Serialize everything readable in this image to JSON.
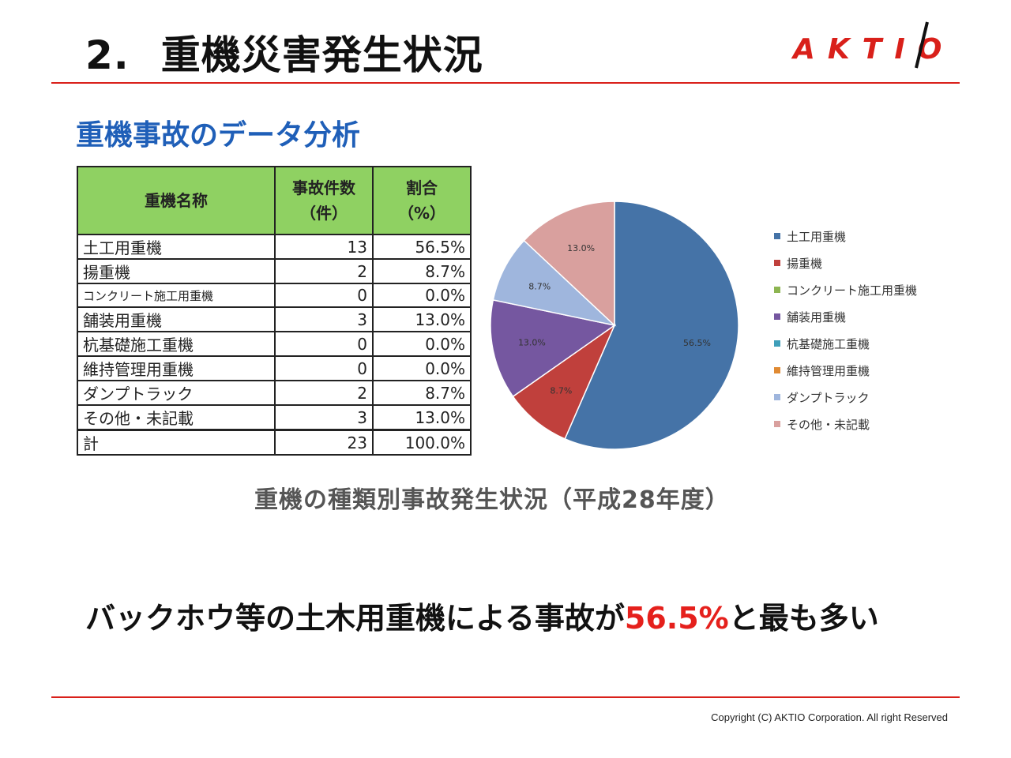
{
  "slide": {
    "number": "2.",
    "title": "重機災害発生状況",
    "logo_text": "AKTIO",
    "section_heading": "重機事故のデータ分析",
    "caption": "重機の種類別事故発生状況（平成28年度）",
    "conclusion_prefix": "バックホウ等の土木用重機による事故が",
    "conclusion_highlight": "56.5%",
    "conclusion_suffix": "と最も多い",
    "copyright": "Copyright (C)  AKTIO Corporation. All right Reserved"
  },
  "table": {
    "headers": {
      "name": "重機名称",
      "count_line1": "事故件数",
      "count_line2": "（件）",
      "ratio_line1": "割合",
      "ratio_line2": "（%）"
    },
    "rows": [
      {
        "name": "土工用重機",
        "count": "13",
        "ratio": "56.5%"
      },
      {
        "name": "揚重機",
        "count": "2",
        "ratio": "8.7%"
      },
      {
        "name": "コンクリート施工用重機",
        "count": "0",
        "ratio": "0.0%"
      },
      {
        "name": "舗装用重機",
        "count": "3",
        "ratio": "13.0%"
      },
      {
        "name": "杭基礎施工重機",
        "count": "0",
        "ratio": "0.0%"
      },
      {
        "name": "維持管理用重機",
        "count": "0",
        "ratio": "0.0%"
      },
      {
        "name": "ダンプトラック",
        "count": "2",
        "ratio": "8.7%"
      },
      {
        "name": "その他・未記載",
        "count": "3",
        "ratio": "13.0%"
      }
    ],
    "total": {
      "name": "計",
      "count": "23",
      "ratio": "100.0%"
    }
  },
  "chart_data": {
    "type": "pie",
    "categories": [
      "土工用重機",
      "揚重機",
      "コンクリート施工用重機",
      "舗装用重機",
      "杭基礎施工重機",
      "維持管理用重機",
      "ダンプトラック",
      "その他・未記載"
    ],
    "values": [
      56.5,
      8.7,
      0.0,
      13.0,
      0.0,
      0.0,
      8.7,
      13.0
    ],
    "labels": [
      "56.5%",
      "8.7%",
      "",
      "13.0%",
      "",
      "",
      "8.7%",
      "13.0%"
    ],
    "colors": [
      "#4573a7",
      "#c0403c",
      "#8db551",
      "#7557a0",
      "#3f9fba",
      "#e08a33",
      "#9fb6dd",
      "#d9a09e"
    ],
    "legend_position": "right"
  }
}
